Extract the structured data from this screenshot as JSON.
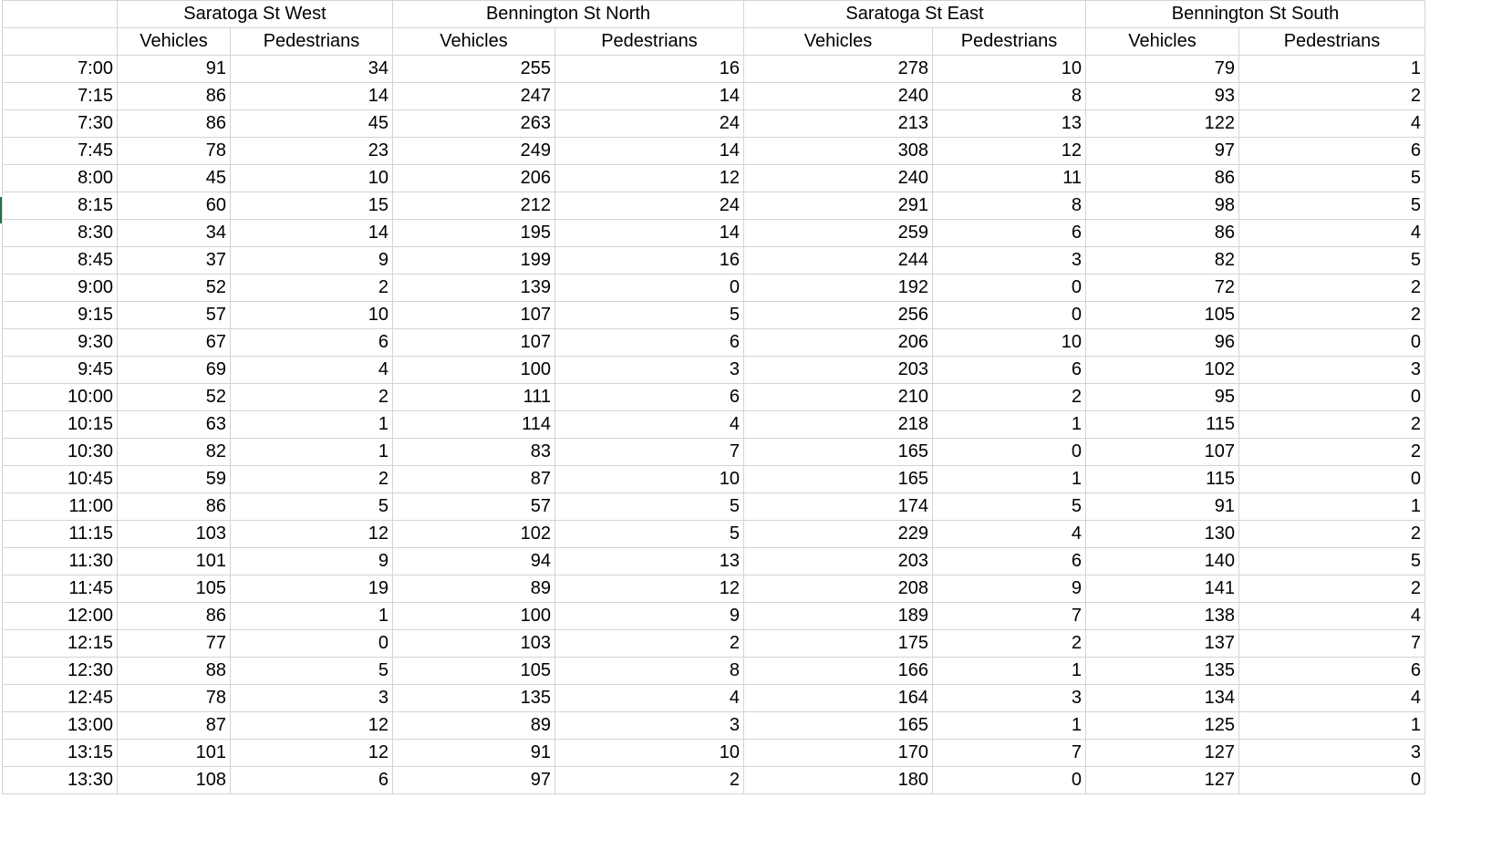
{
  "accent_color": "#217346",
  "header_groups": [
    "Saratoga St West",
    "Bennington St North",
    "Saratoga St East",
    "Bennington St South"
  ],
  "sub_headers": [
    "Vehicles",
    "Pedestrians",
    "Vehicles",
    "Pedestrians",
    "Vehicles",
    "Pedestrians",
    "Vehicles",
    "Pedestrians"
  ],
  "rows": [
    {
      "time": "7:00",
      "values": [
        "91",
        "34",
        "255",
        "16",
        "278",
        "10",
        "79",
        "1"
      ]
    },
    {
      "time": "7:15",
      "values": [
        "86",
        "14",
        "247",
        "14",
        "240",
        "8",
        "93",
        "2"
      ]
    },
    {
      "time": "7:30",
      "values": [
        "86",
        "45",
        "263",
        "24",
        "213",
        "13",
        "122",
        "4"
      ]
    },
    {
      "time": "7:45",
      "values": [
        "78",
        "23",
        "249",
        "14",
        "308",
        "12",
        "97",
        "6"
      ]
    },
    {
      "time": "8:00",
      "values": [
        "45",
        "10",
        "206",
        "12",
        "240",
        "11",
        "86",
        "5"
      ]
    },
    {
      "time": "8:15",
      "values": [
        "60",
        "15",
        "212",
        "24",
        "291",
        "8",
        "98",
        "5"
      ]
    },
    {
      "time": "8:30",
      "values": [
        "34",
        "14",
        "195",
        "14",
        "259",
        "6",
        "86",
        "4"
      ]
    },
    {
      "time": "8:45",
      "values": [
        "37",
        "9",
        "199",
        "16",
        "244",
        "3",
        "82",
        "5"
      ]
    },
    {
      "time": "9:00",
      "values": [
        "52",
        "2",
        "139",
        "0",
        "192",
        "0",
        "72",
        "2"
      ]
    },
    {
      "time": "9:15",
      "values": [
        "57",
        "10",
        "107",
        "5",
        "256",
        "0",
        "105",
        "2"
      ]
    },
    {
      "time": "9:30",
      "values": [
        "67",
        "6",
        "107",
        "6",
        "206",
        "10",
        "96",
        "0"
      ]
    },
    {
      "time": "9:45",
      "values": [
        "69",
        "4",
        "100",
        "3",
        "203",
        "6",
        "102",
        "3"
      ]
    },
    {
      "time": "10:00",
      "values": [
        "52",
        "2",
        "111",
        "6",
        "210",
        "2",
        "95",
        "0"
      ]
    },
    {
      "time": "10:15",
      "values": [
        "63",
        "1",
        "114",
        "4",
        "218",
        "1",
        "115",
        "2"
      ]
    },
    {
      "time": "10:30",
      "values": [
        "82",
        "1",
        "83",
        "7",
        "165",
        "0",
        "107",
        "2"
      ]
    },
    {
      "time": "10:45",
      "values": [
        "59",
        "2",
        "87",
        "10",
        "165",
        "1",
        "115",
        "0"
      ]
    },
    {
      "time": "11:00",
      "values": [
        "86",
        "5",
        "57",
        "5",
        "174",
        "5",
        "91",
        "1"
      ]
    },
    {
      "time": "11:15",
      "values": [
        "103",
        "12",
        "102",
        "5",
        "229",
        "4",
        "130",
        "2"
      ]
    },
    {
      "time": "11:30",
      "values": [
        "101",
        "9",
        "94",
        "13",
        "203",
        "6",
        "140",
        "5"
      ]
    },
    {
      "time": "11:45",
      "values": [
        "105",
        "19",
        "89",
        "12",
        "208",
        "9",
        "141",
        "2"
      ]
    },
    {
      "time": "12:00",
      "values": [
        "86",
        "1",
        "100",
        "9",
        "189",
        "7",
        "138",
        "4"
      ]
    },
    {
      "time": "12:15",
      "values": [
        "77",
        "0",
        "103",
        "2",
        "175",
        "2",
        "137",
        "7"
      ]
    },
    {
      "time": "12:30",
      "values": [
        "88",
        "5",
        "105",
        "8",
        "166",
        "1",
        "135",
        "6"
      ]
    },
    {
      "time": "12:45",
      "values": [
        "78",
        "3",
        "135",
        "4",
        "164",
        "3",
        "134",
        "4"
      ]
    },
    {
      "time": "13:00",
      "values": [
        "87",
        "12",
        "89",
        "3",
        "165",
        "1",
        "125",
        "1"
      ]
    },
    {
      "time": "13:15",
      "values": [
        "101",
        "12",
        "91",
        "10",
        "170",
        "7",
        "127",
        "3"
      ]
    },
    {
      "time": "13:30",
      "values": [
        "108",
        "6",
        "97",
        "2",
        "180",
        "0",
        "127",
        "0"
      ]
    }
  ]
}
